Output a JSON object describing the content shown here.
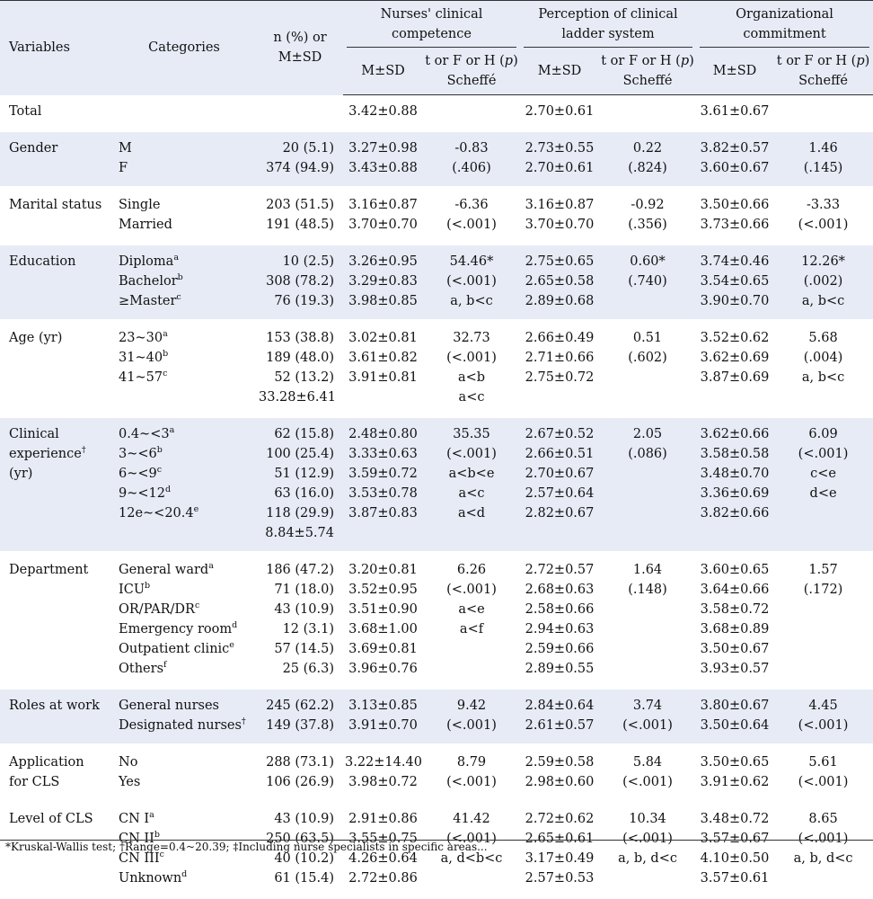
{
  "header": {
    "variables": "Variables",
    "categories": "Categories",
    "n_pct_line1": "n (%) or",
    "n_pct_line2": "M±SD",
    "group1_line1": "Nurses' clinical",
    "group1_line2": "competence",
    "group2_line1": "Perception of clinical",
    "group2_line2": "ladder system",
    "group3_line1": "Organizational",
    "group3_line2": "commitment",
    "msd": "M±SD",
    "test_line1": "t or F or H (p)",
    "test_line2": "Scheffé"
  },
  "rows": [
    {
      "variable": [
        "Total"
      ],
      "categories": [
        ""
      ],
      "n": [
        ""
      ],
      "c_msd": [
        "3.42±0.88"
      ],
      "c_test": [
        ""
      ],
      "p_msd": [
        "2.70±0.61"
      ],
      "p_test": [
        ""
      ],
      "o_msd": [
        "3.61±0.67"
      ],
      "o_test": [
        ""
      ],
      "shade": false
    },
    {
      "variable": [
        "Gender"
      ],
      "categories": [
        "M",
        "F"
      ],
      "n": [
        "20 (5.1)",
        "374 (94.9)"
      ],
      "c_msd": [
        "3.27±0.98",
        "3.43±0.88"
      ],
      "c_test": [
        "-0.83",
        "(.406)"
      ],
      "p_msd": [
        "2.73±0.55",
        "2.70±0.61"
      ],
      "p_test": [
        "0.22",
        "(.824)"
      ],
      "o_msd": [
        "3.82±0.57",
        "3.60±0.67"
      ],
      "o_test": [
        "1.46",
        "(.145)"
      ],
      "shade": true
    },
    {
      "variable": [
        "Marital status"
      ],
      "categories": [
        "Single",
        "Married"
      ],
      "n": [
        "203 (51.5)",
        "191 (48.5)"
      ],
      "c_msd": [
        "3.16±0.87",
        "3.70±0.70"
      ],
      "c_test": [
        "-6.36",
        "(<.001)"
      ],
      "p_msd": [
        "3.16±0.87",
        "3.70±0.70"
      ],
      "p_test": [
        "-0.92",
        "(.356)"
      ],
      "o_msd": [
        "3.50±0.66",
        "3.73±0.66"
      ],
      "o_test": [
        "-3.33",
        "(<.001)"
      ],
      "shade": false
    },
    {
      "variable": [
        "Education"
      ],
      "categories": [
        "Diploma",
        "Bachelor",
        "≥Master"
      ],
      "cat_sup": [
        "a",
        "b",
        "c"
      ],
      "n": [
        "10 (2.5)",
        "308 (78.2)",
        "76 (19.3)"
      ],
      "c_msd": [
        "3.26±0.95",
        "3.29±0.83",
        "3.98±0.85"
      ],
      "c_test": [
        "54.46*",
        "(<.001)",
        "a, b<c"
      ],
      "p_msd": [
        "2.75±0.65",
        "2.65±0.58",
        "2.89±0.68"
      ],
      "p_test": [
        "0.60*",
        "(.740)",
        ""
      ],
      "o_msd": [
        "3.74±0.46",
        "3.54±0.65",
        "3.90±0.70"
      ],
      "o_test": [
        "12.26*",
        "(.002)",
        "a, b<c"
      ],
      "shade": true
    },
    {
      "variable": [
        "Age (yr)"
      ],
      "categories": [
        "23~30",
        "31~40",
        "41~57",
        ""
      ],
      "cat_sup": [
        "a",
        "b",
        "c",
        ""
      ],
      "n": [
        "153 (38.8)",
        "189 (48.0)",
        "52 (13.2)",
        "33.28±6.41"
      ],
      "c_msd": [
        "3.02±0.81",
        "3.61±0.82",
        "3.91±0.81",
        ""
      ],
      "c_test": [
        "32.73",
        "(<.001)",
        "a<b",
        "a<c"
      ],
      "p_msd": [
        "2.66±0.49",
        "2.71±0.66",
        "2.75±0.72",
        ""
      ],
      "p_test": [
        "0.51",
        "(.602)",
        "",
        ""
      ],
      "o_msd": [
        "3.52±0.62",
        "3.62±0.69",
        "3.87±0.69",
        ""
      ],
      "o_test": [
        "5.68",
        "(.004)",
        "a, b<c",
        ""
      ],
      "shade": false
    },
    {
      "variable": [
        "Clinical",
        "experience",
        "(yr)"
      ],
      "var_sup": [
        "",
        "†",
        ""
      ],
      "categories": [
        "0.4~<3",
        "3~<6",
        "6~<9",
        "9~<12",
        "12e~<20.4",
        ""
      ],
      "cat_sup": [
        "a",
        "b",
        "c",
        "d",
        "e",
        ""
      ],
      "n": [
        "62 (15.8)",
        "100 (25.4)",
        "51 (12.9)",
        "63 (16.0)",
        "118 (29.9)",
        "8.84±5.74"
      ],
      "c_msd": [
        "2.48±0.80",
        "3.33±0.63",
        "3.59±0.72",
        "3.53±0.78",
        "3.87±0.83",
        ""
      ],
      "c_test": [
        "35.35",
        "(<.001)",
        "a<b<e",
        "a<c",
        "a<d",
        ""
      ],
      "p_msd": [
        "2.67±0.52",
        "2.66±0.51",
        "2.70±0.67",
        "2.57±0.64",
        "2.82±0.67",
        ""
      ],
      "p_test": [
        "2.05",
        "(.086)",
        "",
        "",
        "",
        ""
      ],
      "o_msd": [
        "3.62±0.66",
        "3.58±0.58",
        "3.48±0.70",
        "3.36±0.69",
        "3.82±0.66",
        ""
      ],
      "o_test": [
        "6.09",
        "(<.001)",
        "c<e",
        "d<e",
        "",
        ""
      ],
      "shade": true
    },
    {
      "variable": [
        "Department"
      ],
      "categories": [
        "General ward",
        "ICU",
        "OR/PAR/DR",
        "Emergency room",
        "Outpatient clinic",
        "Others"
      ],
      "cat_sup": [
        "a",
        "b",
        "c",
        "d",
        "e",
        "f"
      ],
      "n": [
        "186 (47.2)",
        "71 (18.0)",
        "43 (10.9)",
        "12 (3.1)",
        "57 (14.5)",
        "25 (6.3)"
      ],
      "c_msd": [
        "3.20±0.81",
        "3.52±0.95",
        "3.51±0.90",
        "3.68±1.00",
        "3.69±0.81",
        "3.96±0.76"
      ],
      "c_test": [
        "6.26",
        "(<.001)",
        "a<e",
        "a<f",
        "",
        ""
      ],
      "p_msd": [
        "2.72±0.57",
        "2.68±0.63",
        "2.58±0.66",
        "2.94±0.63",
        "2.59±0.66",
        "2.89±0.55"
      ],
      "p_test": [
        "1.64",
        "(.148)",
        "",
        "",
        "",
        ""
      ],
      "o_msd": [
        "3.60±0.65",
        "3.64±0.66",
        "3.58±0.72",
        "3.68±0.89",
        "3.50±0.67",
        "3.93±0.57"
      ],
      "o_test": [
        "1.57",
        "(.172)",
        "",
        "",
        "",
        ""
      ],
      "shade": false
    },
    {
      "variable": [
        "Roles at work"
      ],
      "categories": [
        "General nurses",
        "Designated nurses"
      ],
      "cat_sup": [
        "",
        "†"
      ],
      "n": [
        "245 (62.2)",
        "149 (37.8)"
      ],
      "c_msd": [
        "3.13±0.85",
        "3.91±0.70"
      ],
      "c_test": [
        "9.42",
        "(<.001)"
      ],
      "p_msd": [
        "2.84±0.64",
        "2.61±0.57"
      ],
      "p_test": [
        "3.74",
        "(<.001)"
      ],
      "o_msd": [
        "3.80±0.67",
        "3.50±0.64"
      ],
      "o_test": [
        "4.45",
        "(<.001)"
      ],
      "shade": true
    },
    {
      "variable": [
        "Application",
        "for CLS"
      ],
      "categories": [
        "No",
        "Yes"
      ],
      "n": [
        "288 (73.1)",
        "106 (26.9)"
      ],
      "c_msd": [
        "3.22±14.40",
        "3.98±0.72"
      ],
      "c_test": [
        "8.79",
        "(<.001)"
      ],
      "p_msd": [
        "2.59±0.58",
        "2.98±0.60"
      ],
      "p_test": [
        "5.84",
        "(<.001)"
      ],
      "o_msd": [
        "3.50±0.65",
        "3.91±0.62"
      ],
      "o_test": [
        "5.61",
        "(<.001)"
      ],
      "shade": false
    },
    {
      "variable": [
        "Level of CLS"
      ],
      "categories": [
        "CN I",
        "CN II",
        "CN III",
        "Unknown"
      ],
      "cat_sup": [
        "a",
        "b",
        "c",
        "d"
      ],
      "n": [
        "43 (10.9)",
        "250 (63.5)",
        "40 (10.2)",
        "61 (15.4)"
      ],
      "c_msd": [
        "2.91±0.86",
        "3.55±0.75",
        "4.26±0.64",
        "2.72±0.86"
      ],
      "c_test": [
        "41.42",
        "(<.001)",
        "a, d<b<c",
        ""
      ],
      "p_msd": [
        "2.72±0.62",
        "2.65±0.61",
        "3.17±0.49",
        "2.57±0.53"
      ],
      "p_test": [
        "10.34",
        "(<.001)",
        "a, b, d<c",
        ""
      ],
      "o_msd": [
        "3.48±0.72",
        "3.57±0.67",
        "4.10±0.50",
        "3.57±0.61"
      ],
      "o_test": [
        "8.65",
        "(<.001)",
        "a, b, d<c",
        ""
      ],
      "shade": false
    }
  ],
  "footnote": "*Kruskal-Wallis test; †Range=0.4~20.39; ‡Including nurse specialists in specific areas..."
}
